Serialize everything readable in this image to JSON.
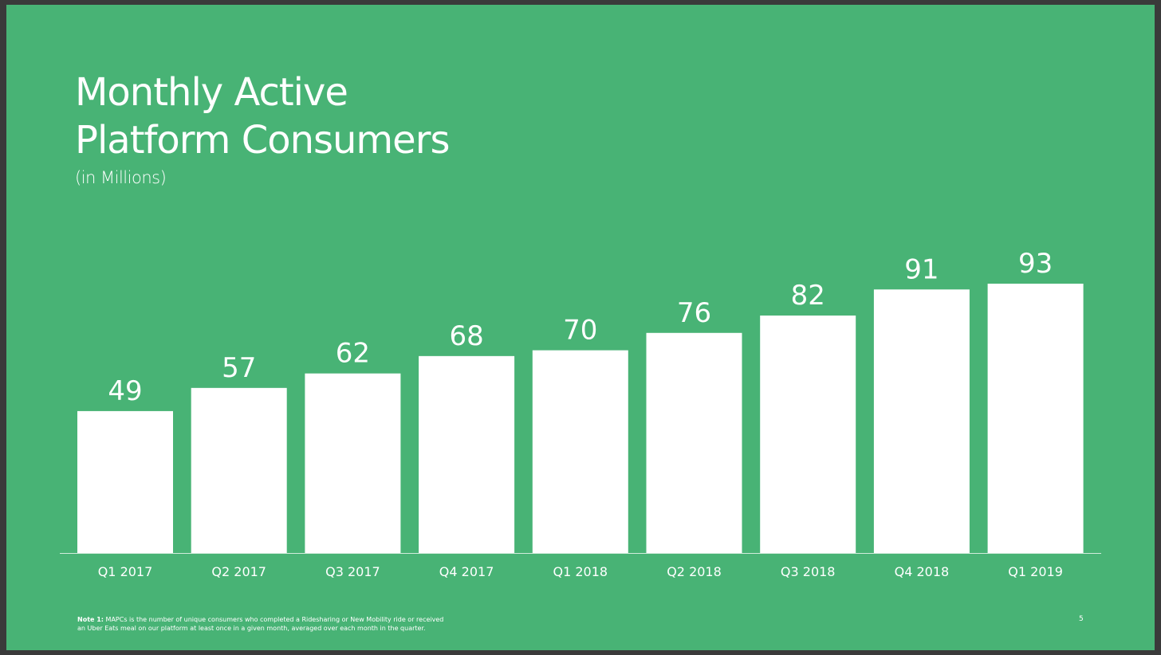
{
  "slide": {
    "title_line1": "Monthly Active",
    "title_line2": "Platform Consumers",
    "subtitle": "(in Millions)",
    "footnote_label": "Note 1:",
    "footnote_text": "MAPCs is the number of unique consumers who completed a Ridesharing or New Mobility ride or received an Uber Eats meal on our platform at least once in a given month, averaged over each month in the quarter.",
    "page_number": "5"
  },
  "colors": {
    "background": "#48b375",
    "bar": "#ffffff",
    "text": "#ffffff"
  },
  "chart_data": {
    "type": "bar",
    "title": "Monthly Active Platform Consumers",
    "subtitle": "(in Millions)",
    "categories": [
      "Q1 2017",
      "Q2 2017",
      "Q3 2017",
      "Q4 2017",
      "Q1 2018",
      "Q2 2018",
      "Q3 2018",
      "Q4 2018",
      "Q1 2019"
    ],
    "values": [
      49,
      57,
      62,
      68,
      70,
      76,
      82,
      91,
      93
    ],
    "xlabel": "",
    "ylabel": "",
    "ylim": [
      0,
      93
    ],
    "grid": false,
    "legend": "none"
  }
}
